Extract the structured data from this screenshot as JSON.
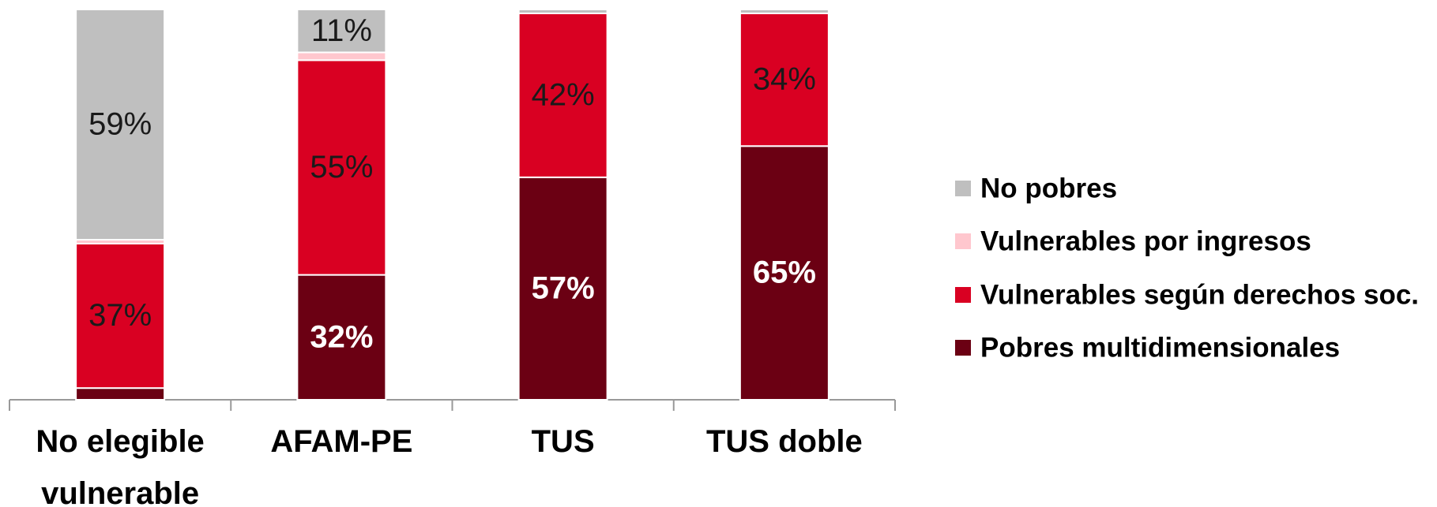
{
  "chart_data": {
    "type": "stacked_bar",
    "categories": [
      "No elegible vulnerable",
      "AFAM-PE",
      "TUS",
      "TUS doble"
    ],
    "series": [
      {
        "name": "Pobres multidimensionales",
        "color": "#6b0013",
        "values": [
          3,
          32,
          57,
          65
        ],
        "value_labels": [
          null,
          "32%",
          "57%",
          "65%"
        ]
      },
      {
        "name": "Vulnerables según derechos soc.",
        "color": "#d90022",
        "values": [
          37,
          55,
          42,
          34
        ],
        "value_labels": [
          "37%",
          "55%",
          "42%",
          "34%"
        ]
      },
      {
        "name": "Vulnerables por ingresos",
        "color": "#ffc7ce",
        "values": [
          1,
          2,
          0,
          0
        ],
        "value_labels": [
          null,
          null,
          null,
          null
        ]
      },
      {
        "name": "No pobres",
        "color": "#bfbfbf",
        "values": [
          59,
          11,
          1,
          1
        ],
        "value_labels": [
          "59%",
          "11%",
          null,
          null
        ]
      }
    ],
    "legend": "right"
  }
}
